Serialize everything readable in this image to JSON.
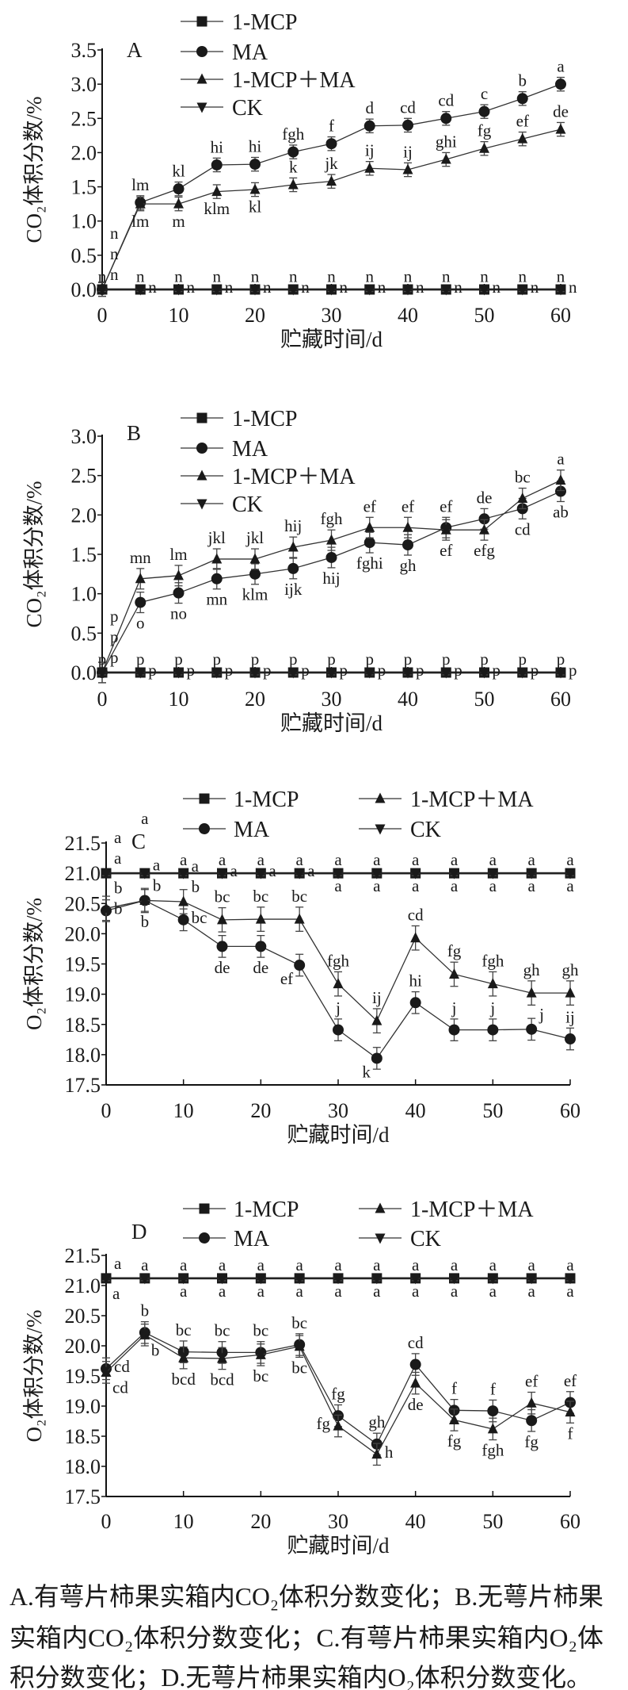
{
  "chart_data": [
    {
      "panel": "A",
      "type": "line",
      "xlabel": "贮藏时间/d",
      "ylabel": "CO₂体积分数/%",
      "x": [
        0,
        5,
        10,
        15,
        20,
        25,
        30,
        35,
        40,
        45,
        50,
        55,
        60
      ],
      "xticks": [
        0,
        10,
        20,
        30,
        40,
        50,
        60
      ],
      "ylim": [
        0,
        3.5
      ],
      "yticks": [
        0,
        0.5,
        1,
        1.5,
        2,
        2.5,
        3,
        3.5
      ],
      "legend": "top",
      "series": [
        {
          "name": "1-MCP",
          "marker": "square",
          "err": 0.03,
          "values": [
            0,
            0,
            0,
            0,
            0,
            0,
            0,
            0,
            0,
            0,
            0,
            0,
            0
          ],
          "labels": [
            "n",
            "n",
            "n",
            "n",
            "n",
            "n",
            "n",
            "n",
            "n",
            "n",
            "n",
            "n",
            "n"
          ],
          "label_pos": [
            "a",
            "a",
            "a",
            "a",
            "a",
            "a",
            "a",
            "a",
            "a",
            "a",
            "a",
            "a",
            "a"
          ]
        },
        {
          "name": "MA",
          "marker": "circle",
          "err": 0.1,
          "values": [
            0,
            1.27,
            1.47,
            1.82,
            1.83,
            2.01,
            2.13,
            2.39,
            2.4,
            2.5,
            2.6,
            2.79,
            3.0
          ],
          "labels": [
            "n",
            "lm",
            "kl",
            "hi",
            "hi",
            "fgh",
            "f",
            "d",
            "cd",
            "cd",
            "c",
            "b",
            "a"
          ],
          "label_pos": [
            "ar",
            "a",
            "a",
            "a",
            "a",
            "a",
            "a",
            "a",
            "a",
            "a",
            "a",
            "a",
            "a"
          ]
        },
        {
          "name": "1-MCP＋MA",
          "marker": "triangle-up",
          "err": 0.1,
          "values": [
            0,
            1.25,
            1.25,
            1.43,
            1.46,
            1.53,
            1.58,
            1.77,
            1.75,
            1.9,
            2.06,
            2.2,
            2.34
          ],
          "labels": [
            "n",
            "lm",
            "m",
            "klm",
            "kl",
            "k",
            "jk",
            "ij",
            "ij",
            "ghi",
            "fg",
            "ef",
            "de"
          ],
          "label_pos": [
            "ar2",
            "b",
            "b",
            "b",
            "b",
            "a",
            "a",
            "a",
            "a",
            "a",
            "a",
            "a",
            "a"
          ]
        },
        {
          "name": "CK",
          "marker": "triangle-down",
          "err": 0.03,
          "values": [
            0,
            0,
            0,
            0,
            0,
            0,
            0,
            0,
            0,
            0,
            0,
            0,
            0
          ],
          "labels": [
            "n",
            "n",
            "n",
            "n",
            "n",
            "n",
            "n",
            "n",
            "n",
            "n",
            "n",
            "n",
            "n"
          ],
          "label_pos": [
            "r",
            "r",
            "r",
            "r",
            "r",
            "r",
            "r",
            "r",
            "r",
            "r",
            "r",
            "r",
            "r"
          ]
        }
      ]
    },
    {
      "panel": "B",
      "type": "line",
      "xlabel": "贮藏时间/d",
      "ylabel": "CO₂体积分数/%",
      "x": [
        0,
        5,
        10,
        15,
        20,
        25,
        30,
        35,
        40,
        45,
        50,
        55,
        60
      ],
      "xticks": [
        0,
        10,
        20,
        30,
        40,
        50,
        60
      ],
      "ylim": [
        0,
        3.0
      ],
      "yticks": [
        0,
        0.5,
        1,
        1.5,
        2,
        2.5,
        3
      ],
      "legend": "top",
      "series": [
        {
          "name": "1-MCP",
          "marker": "square",
          "err": 0.03,
          "values": [
            0,
            0,
            0,
            0,
            0,
            0,
            0,
            0,
            0,
            0,
            0,
            0,
            0
          ],
          "labels": [
            "p",
            "p",
            "p",
            "p",
            "p",
            "p",
            "p",
            "p",
            "p",
            "p",
            "p",
            "p",
            "p"
          ],
          "label_pos": [
            "a",
            "a",
            "a",
            "a",
            "a",
            "a",
            "a",
            "a",
            "a",
            "a",
            "a",
            "a",
            "a"
          ]
        },
        {
          "name": "MA",
          "marker": "circle",
          "err": 0.13,
          "values": [
            0,
            0.89,
            1.01,
            1.19,
            1.25,
            1.32,
            1.46,
            1.65,
            1.62,
            1.84,
            1.95,
            2.08,
            2.3
          ],
          "labels": [
            "p",
            "o",
            "no",
            "mn",
            "klm",
            "ijk",
            "hij",
            "fghi",
            "gh",
            "ef",
            "de",
            "cd",
            "ab"
          ],
          "label_pos": [
            "ar",
            "b",
            "b",
            "b",
            "b",
            "b",
            "b",
            "b",
            "b",
            "a",
            "a",
            "b",
            "b"
          ]
        },
        {
          "name": "1-MCP＋MA",
          "marker": "triangle-up",
          "err": 0.13,
          "values": [
            0,
            1.19,
            1.23,
            1.44,
            1.44,
            1.59,
            1.68,
            1.84,
            1.84,
            1.81,
            1.81,
            2.21,
            2.44
          ],
          "labels": [
            "p",
            "mn",
            "lm",
            "jkl",
            "jkl",
            "hij",
            "fgh",
            "ef",
            "ef",
            "ef",
            "efg",
            "bc",
            "a"
          ],
          "label_pos": [
            "ar2",
            "a",
            "a",
            "a",
            "a",
            "a",
            "a",
            "a",
            "a",
            "b",
            "b",
            "a",
            "a"
          ]
        },
        {
          "name": "CK",
          "marker": "triangle-down",
          "err": 0.03,
          "values": [
            0,
            0,
            0,
            0,
            0,
            0,
            0,
            0,
            0,
            0,
            0,
            0,
            0
          ],
          "labels": [
            "p",
            "p",
            "p",
            "p",
            "p",
            "p",
            "p",
            "p",
            "p",
            "p",
            "p",
            "p",
            "p"
          ],
          "label_pos": [
            "r",
            "r",
            "r",
            "r",
            "r",
            "r",
            "r",
            "r",
            "r",
            "r",
            "r",
            "r",
            "r"
          ]
        }
      ]
    },
    {
      "panel": "C",
      "type": "line",
      "xlabel": "贮藏时间/d",
      "ylabel": "O₂体积分数/%",
      "x": [
        0,
        5,
        10,
        15,
        20,
        25,
        30,
        35,
        40,
        45,
        50,
        55,
        60
      ],
      "xticks": [
        0,
        10,
        20,
        30,
        40,
        50,
        60
      ],
      "ylim": [
        17.5,
        21.5
      ],
      "yticks": [
        17.5,
        18,
        18.5,
        19,
        19.5,
        20,
        20.5,
        21,
        21.5
      ],
      "legend": "top",
      "series": [
        {
          "name": "1-MCP",
          "marker": "square",
          "err": 0.04,
          "values": [
            21,
            21,
            21,
            21,
            21,
            21,
            21,
            21,
            21,
            21,
            21,
            21,
            21
          ],
          "labels": [
            "a",
            "a",
            "a",
            "a",
            "a",
            "a",
            "a",
            "a",
            "a",
            "a",
            "a",
            "a",
            "a"
          ],
          "label_pos": [
            "ar",
            "a",
            "a",
            "a",
            "a",
            "a",
            "a",
            "a",
            "a",
            "a",
            "a",
            "a",
            "a"
          ]
        },
        {
          "name": "MA",
          "marker": "circle",
          "err": 0.18,
          "values": [
            20.38,
            20.55,
            20.23,
            19.79,
            19.79,
            19.48,
            18.41,
            17.94,
            18.86,
            18.41,
            18.41,
            18.42,
            18.26
          ],
          "labels": [
            "b",
            "b",
            "bc",
            "de",
            "de",
            "ef",
            "j",
            "k",
            "hi",
            "j",
            "j",
            "j",
            "ij"
          ],
          "label_pos": [
            "r",
            "b",
            "r",
            "b",
            "b",
            "bl",
            "a",
            "bl",
            "a",
            "a",
            "a",
            "ar",
            "a"
          ]
        },
        {
          "name": "1-MCP＋MA",
          "marker": "triangle-up",
          "err": 0.2,
          "values": [
            20.42,
            20.55,
            20.53,
            20.23,
            20.24,
            20.24,
            19.17,
            18.56,
            19.93,
            19.33,
            19.17,
            19.02,
            19.02
          ],
          "labels": [
            "b",
            "b",
            "b",
            "bc",
            "bc",
            "bc",
            "fgh",
            "ij",
            "cd",
            "fg",
            "fgh",
            "gh",
            "gh"
          ],
          "label_pos": [
            "ar",
            "ar",
            "ar",
            "a",
            "a",
            "a",
            "a",
            "a",
            "a",
            "a",
            "a",
            "a",
            "a"
          ]
        },
        {
          "name": "CK",
          "marker": "triangle-down",
          "err": 0.04,
          "values": [
            21,
            21,
            21,
            21,
            21,
            21,
            21,
            21,
            21,
            21,
            21,
            21,
            21
          ],
          "labels": [
            "a",
            "a",
            "a",
            "a",
            "a",
            "a",
            "a",
            "a",
            "a",
            "a",
            "a",
            "a",
            "a"
          ],
          "label_pos": [
            "r",
            "r",
            "r",
            "r",
            "r",
            "r",
            "b",
            "b",
            "b",
            "b",
            "b",
            "b",
            "b"
          ]
        }
      ]
    },
    {
      "panel": "D",
      "type": "line",
      "xlabel": "贮藏时间/d",
      "ylabel": "O₂体积分数/%",
      "x": [
        0,
        5,
        10,
        15,
        20,
        25,
        30,
        35,
        40,
        45,
        50,
        55,
        60
      ],
      "xticks": [
        0,
        10,
        20,
        30,
        40,
        50,
        60
      ],
      "ylim": [
        17.5,
        21.5
      ],
      "yticks": [
        17.5,
        18,
        18.5,
        19,
        19.5,
        20,
        20.5,
        21,
        21.5
      ],
      "legend": "top",
      "series": [
        {
          "name": "1-MCP",
          "marker": "square",
          "err": 0.04,
          "values": [
            21.12,
            21.12,
            21.12,
            21.12,
            21.12,
            21.12,
            21.12,
            21.12,
            21.12,
            21.12,
            21.12,
            21.12,
            21.12
          ],
          "labels": [
            "a",
            "a",
            "a",
            "a",
            "a",
            "a",
            "a",
            "a",
            "a",
            "a",
            "a",
            "a",
            "a"
          ],
          "label_pos": [
            "ar",
            "a",
            "a",
            "a",
            "a",
            "a",
            "a",
            "a",
            "a",
            "a",
            "a",
            "a",
            "a"
          ]
        },
        {
          "name": "MA",
          "marker": "circle",
          "err": 0.18,
          "values": [
            19.62,
            20.22,
            19.9,
            19.89,
            19.89,
            20.02,
            18.84,
            18.37,
            19.69,
            18.93,
            18.92,
            18.76,
            19.06
          ],
          "labels": [
            "cd",
            "b",
            "bc",
            "bc",
            "bc",
            "bc",
            "fg",
            "gh",
            "cd",
            "f",
            "f",
            "fg",
            "ef"
          ],
          "label_pos": [
            "r",
            "a",
            "a",
            "a",
            "a",
            "a",
            "a",
            "a",
            "a",
            "a",
            "a",
            "b",
            "a"
          ]
        },
        {
          "name": "1-MCP＋MA",
          "marker": "triangle-up",
          "err": 0.18,
          "values": [
            19.56,
            20.18,
            19.8,
            19.79,
            19.85,
            19.99,
            18.67,
            18.2,
            19.38,
            18.77,
            18.62,
            19.05,
            18.9
          ],
          "labels": [
            "cd",
            "b",
            "bcd",
            "bcd",
            "bc",
            "bc",
            "fg",
            "h",
            "de",
            "fg",
            "fgh",
            "ef",
            "f"
          ],
          "label_pos": [
            "br",
            "br",
            "b",
            "b",
            "b",
            "b",
            "l",
            "r",
            "b",
            "b",
            "b",
            "a",
            "b"
          ]
        },
        {
          "name": "CK",
          "marker": "triangle-down",
          "err": 0.04,
          "values": [
            21.12,
            21.12,
            21.12,
            21.12,
            21.12,
            21.12,
            21.12,
            21.12,
            21.12,
            21.12,
            21.12,
            21.12,
            21.12
          ],
          "labels": [
            "a",
            "a",
            "a",
            "a",
            "a",
            "a",
            "a",
            "a",
            "a",
            "a",
            "a",
            "a",
            "a"
          ],
          "label_pos": [
            "br",
            "b",
            "b",
            "b",
            "b",
            "b",
            "b",
            "b",
            "b",
            "b",
            "b",
            "b",
            "b"
          ]
        }
      ]
    }
  ],
  "caption": [
    "A.有萼片柿果实箱内CO₂体积分数变化；B.无萼片柿果",
    "实箱内CO₂体积分数变化；C.有萼片柿果实箱内O₂体",
    "积分数变化；D.无萼片柿果实箱内O₂体积分数变化。"
  ]
}
